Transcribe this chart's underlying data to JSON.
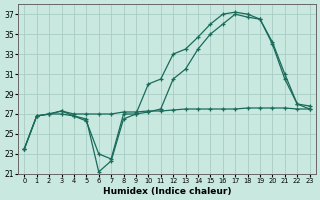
{
  "xlabel": "Humidex (Indice chaleur)",
  "bg_color": "#c8e8e0",
  "grid_color": "#a8ccc4",
  "line_color": "#1a6b5a",
  "xlim": [
    -0.5,
    23.5
  ],
  "ylim": [
    21,
    38
  ],
  "yticks": [
    21,
    23,
    25,
    27,
    29,
    31,
    33,
    35,
    37
  ],
  "xticks": [
    0,
    1,
    2,
    3,
    4,
    5,
    6,
    7,
    8,
    9,
    10,
    11,
    12,
    13,
    14,
    15,
    16,
    17,
    18,
    19,
    20,
    21,
    22,
    23
  ],
  "line1_x": [
    0,
    1,
    2,
    3,
    4,
    5,
    6,
    7,
    8,
    9,
    10,
    11,
    12,
    13,
    14,
    15,
    16,
    17,
    18,
    19,
    20,
    21,
    22,
    23
  ],
  "line1_y": [
    23.5,
    26.8,
    27.0,
    27.0,
    26.8,
    26.5,
    21.2,
    22.3,
    26.5,
    27.0,
    30.0,
    30.5,
    33.0,
    33.5,
    34.7,
    36.0,
    37.0,
    37.2,
    37.0,
    36.5,
    34.2,
    31.0,
    28.0,
    27.5
  ],
  "line2_x": [
    0,
    1,
    2,
    3,
    4,
    5,
    6,
    7,
    8,
    9,
    10,
    11,
    12,
    13,
    14,
    15,
    16,
    17,
    18,
    19,
    20,
    21,
    22,
    23
  ],
  "line2_y": [
    23.5,
    26.8,
    27.0,
    27.3,
    26.8,
    26.3,
    23.0,
    22.5,
    27.0,
    27.0,
    27.2,
    27.5,
    30.5,
    31.5,
    33.5,
    35.0,
    36.0,
    37.0,
    36.7,
    36.5,
    34.0,
    30.5,
    28.0,
    27.8
  ],
  "line3_x": [
    0,
    1,
    2,
    3,
    4,
    5,
    6,
    7,
    8,
    9,
    10,
    11,
    12,
    13,
    14,
    15,
    16,
    17,
    18,
    19,
    20,
    21,
    22,
    23
  ],
  "line3_y": [
    23.5,
    26.8,
    27.0,
    27.3,
    27.0,
    27.0,
    27.0,
    27.0,
    27.2,
    27.2,
    27.3,
    27.3,
    27.4,
    27.5,
    27.5,
    27.5,
    27.5,
    27.5,
    27.6,
    27.6,
    27.6,
    27.6,
    27.5,
    27.5
  ]
}
